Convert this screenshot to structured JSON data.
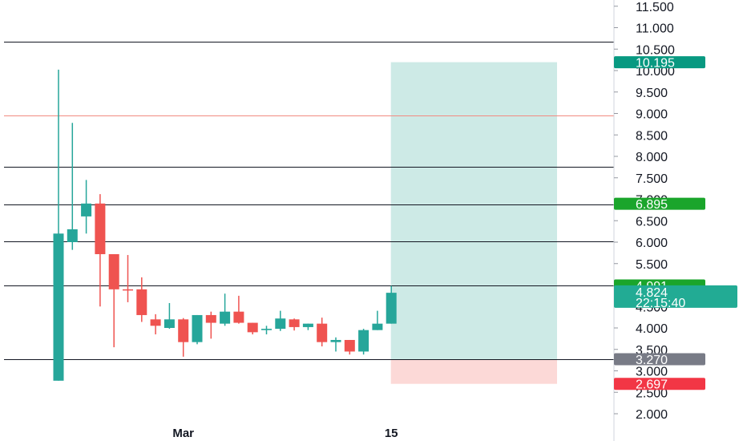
{
  "chart_data": {
    "type": "candlestick",
    "y_axis": {
      "ticks": [
        "2.000",
        "2.500",
        "3.000",
        "3.500",
        "4.000",
        "4.500",
        "5.000",
        "5.500",
        "6.000",
        "6.500",
        "7.000",
        "7.500",
        "8.000",
        "8.500",
        "9.000",
        "9.500",
        "10.000",
        "10.500",
        "11.000",
        "11.500"
      ],
      "tick_values": [
        2.0,
        2.5,
        3.0,
        3.5,
        4.0,
        4.5,
        5.0,
        5.5,
        6.0,
        6.5,
        7.0,
        7.5,
        8.0,
        8.5,
        9.0,
        9.5,
        10.0,
        10.5,
        11.0,
        11.5
      ],
      "range": [
        1.6,
        11.6
      ]
    },
    "x_axis": {
      "labels": [
        {
          "text": "Mar",
          "index": 9
        },
        {
          "text": "15",
          "index": 24
        }
      ]
    },
    "candles": [
      {
        "o": 2.77,
        "h": 10.02,
        "l": 2.77,
        "c": 6.2
      },
      {
        "o": 6.0,
        "h": 8.78,
        "l": 5.82,
        "c": 6.3
      },
      {
        "o": 6.6,
        "h": 7.45,
        "l": 6.2,
        "c": 6.9
      },
      {
        "o": 6.9,
        "h": 7.12,
        "l": 4.5,
        "c": 5.72
      },
      {
        "o": 5.72,
        "h": 5.72,
        "l": 3.55,
        "c": 4.9
      },
      {
        "o": 4.9,
        "h": 5.7,
        "l": 4.6,
        "c": 4.88
      },
      {
        "o": 4.9,
        "h": 5.18,
        "l": 4.14,
        "c": 4.3
      },
      {
        "o": 4.2,
        "h": 4.32,
        "l": 3.85,
        "c": 4.05
      },
      {
        "o": 4.0,
        "h": 4.58,
        "l": 3.98,
        "c": 4.2
      },
      {
        "o": 4.2,
        "h": 4.23,
        "l": 3.33,
        "c": 3.67
      },
      {
        "o": 3.67,
        "h": 4.3,
        "l": 3.62,
        "c": 4.3
      },
      {
        "o": 4.3,
        "h": 4.38,
        "l": 3.75,
        "c": 4.12
      },
      {
        "o": 4.1,
        "h": 4.8,
        "l": 4.05,
        "c": 4.38
      },
      {
        "o": 4.38,
        "h": 4.75,
        "l": 4.1,
        "c": 4.12
      },
      {
        "o": 4.12,
        "h": 4.12,
        "l": 3.85,
        "c": 3.9
      },
      {
        "o": 3.95,
        "h": 4.05,
        "l": 3.85,
        "c": 3.98
      },
      {
        "o": 3.98,
        "h": 4.4,
        "l": 3.93,
        "c": 4.22
      },
      {
        "o": 4.2,
        "h": 4.22,
        "l": 3.94,
        "c": 4.02
      },
      {
        "o": 4.02,
        "h": 4.1,
        "l": 3.95,
        "c": 4.1
      },
      {
        "o": 4.1,
        "h": 4.24,
        "l": 3.57,
        "c": 3.67
      },
      {
        "o": 3.67,
        "h": 3.78,
        "l": 3.45,
        "c": 3.72
      },
      {
        "o": 3.72,
        "h": 3.72,
        "l": 3.38,
        "c": 3.45
      },
      {
        "o": 3.45,
        "h": 3.98,
        "l": 3.38,
        "c": 3.95
      },
      {
        "o": 3.95,
        "h": 4.4,
        "l": 3.95,
        "c": 4.1
      },
      {
        "o": 4.1,
        "h": 4.98,
        "l": 4.1,
        "c": 4.82
      }
    ],
    "horizontal_lines": [
      {
        "value": 10.68,
        "color": "#131722"
      },
      {
        "value": 8.96,
        "color": "#f28b82"
      },
      {
        "value": 7.75,
        "color": "#131722"
      },
      {
        "value": 6.88,
        "color": "#131722"
      },
      {
        "value": 6.02,
        "color": "#131722"
      },
      {
        "value": 4.99,
        "color": "#131722"
      },
      {
        "value": 3.28,
        "color": "#131722"
      }
    ],
    "position": {
      "profit_zone": [
        3.27,
        10.195
      ],
      "loss_zone": [
        2.697,
        3.27
      ],
      "start_index": 24,
      "end_index": 36
    },
    "price_tags": [
      {
        "label": "10.195",
        "value": 10.195,
        "color": "#089981"
      },
      {
        "label": "6.895",
        "value": 6.895,
        "color": "#1aa52b"
      },
      {
        "label": "4.991",
        "value": 4.991,
        "color": "#1aa52b"
      },
      {
        "label": "4.824",
        "sublabel": "22:15:40",
        "value": 4.824,
        "color": "#22ab94"
      },
      {
        "label": "3.270",
        "value": 3.27,
        "color": "#787b86"
      },
      {
        "label": "2.697",
        "value": 2.697,
        "color": "#f23645"
      }
    ],
    "colors": {
      "up": "#26a69a",
      "down": "#ef5350",
      "profit_fill": "#cdeae6",
      "loss_fill": "#fcd9d7"
    }
  }
}
